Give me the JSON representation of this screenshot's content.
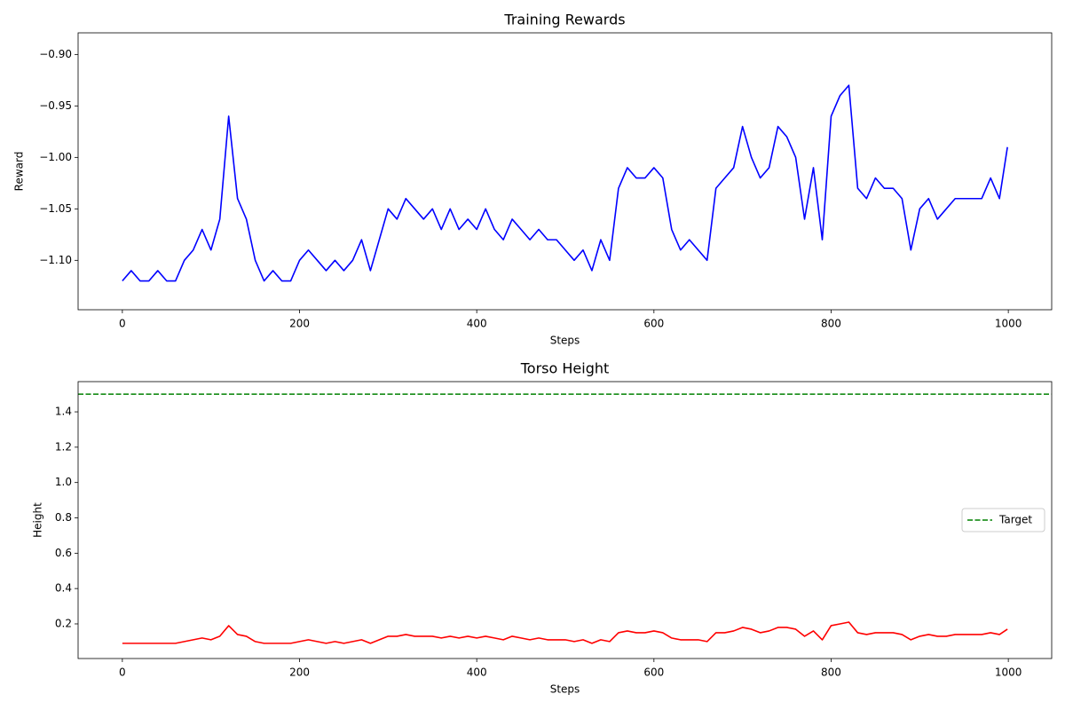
{
  "chart_data": [
    {
      "type": "line",
      "title": "Training Rewards",
      "xlabel": "Steps",
      "ylabel": "Reward",
      "x": [
        0,
        10,
        20,
        30,
        40,
        50,
        60,
        70,
        80,
        90,
        100,
        110,
        120,
        130,
        140,
        150,
        160,
        170,
        180,
        190,
        200,
        210,
        220,
        230,
        240,
        250,
        260,
        270,
        280,
        290,
        300,
        310,
        320,
        330,
        340,
        350,
        360,
        370,
        380,
        390,
        400,
        410,
        420,
        430,
        440,
        450,
        460,
        470,
        480,
        490,
        500,
        510,
        520,
        530,
        540,
        550,
        560,
        570,
        580,
        590,
        600,
        610,
        620,
        630,
        640,
        650,
        660,
        670,
        680,
        690,
        700,
        710,
        720,
        730,
        740,
        750,
        760,
        770,
        780,
        790,
        800,
        810,
        820,
        830,
        840,
        850,
        860,
        870,
        880,
        890,
        900,
        910,
        920,
        930,
        940,
        950,
        960,
        970,
        980,
        990,
        999
      ],
      "series": [
        {
          "color": "blue",
          "values": [
            -1.12,
            -1.11,
            -1.12,
            -1.12,
            -1.11,
            -1.12,
            -1.12,
            -1.1,
            -1.09,
            -1.07,
            -1.09,
            -1.06,
            -0.96,
            -1.04,
            -1.06,
            -1.1,
            -1.12,
            -1.11,
            -1.12,
            -1.12,
            -1.1,
            -1.09,
            -1.1,
            -1.11,
            -1.1,
            -1.11,
            -1.1,
            -1.08,
            -1.11,
            -1.08,
            -1.05,
            -1.06,
            -1.04,
            -1.05,
            -1.06,
            -1.05,
            -1.07,
            -1.05,
            -1.07,
            -1.06,
            -1.07,
            -1.05,
            -1.07,
            -1.08,
            -1.06,
            -1.07,
            -1.08,
            -1.07,
            -1.08,
            -1.08,
            -1.09,
            -1.1,
            -1.09,
            -1.11,
            -1.08,
            -1.1,
            -1.03,
            -1.01,
            -1.02,
            -1.02,
            -1.01,
            -1.02,
            -1.07,
            -1.09,
            -1.08,
            -1.09,
            -1.1,
            -1.03,
            -1.02,
            -1.01,
            -0.97,
            -1.0,
            -1.02,
            -1.01,
            -0.97,
            -0.98,
            -1.0,
            -1.06,
            -1.01,
            -1.08,
            -0.96,
            -0.94,
            -0.93,
            -1.03,
            -1.04,
            -1.02,
            -1.03,
            -1.03,
            -1.04,
            -1.09,
            -1.05,
            -1.04,
            -1.06,
            -1.05,
            -1.04,
            -1.04,
            -1.04,
            -1.04,
            -1.02,
            -1.04,
            -0.99
          ]
        }
      ],
      "xlim": [
        -49.95,
        1048.95
      ],
      "xticks": [
        0,
        200,
        400,
        600,
        800,
        1000
      ],
      "ylim": [
        -1.148,
        -0.879
      ],
      "yticks": [
        {
          "value": -1.1,
          "label": "−1.10"
        },
        {
          "value": -1.05,
          "label": "−1.05"
        },
        {
          "value": -1.0,
          "label": "−1.00"
        },
        {
          "value": -0.95,
          "label": "−0.95"
        },
        {
          "value": -0.9,
          "label": "−0.90"
        }
      ]
    },
    {
      "type": "line",
      "title": "Torso Height",
      "xlabel": "Steps",
      "ylabel": "Height",
      "x": [
        0,
        10,
        20,
        30,
        40,
        50,
        60,
        70,
        80,
        90,
        100,
        110,
        120,
        130,
        140,
        150,
        160,
        170,
        180,
        190,
        200,
        210,
        220,
        230,
        240,
        250,
        260,
        270,
        280,
        290,
        300,
        310,
        320,
        330,
        340,
        350,
        360,
        370,
        380,
        390,
        400,
        410,
        420,
        430,
        440,
        450,
        460,
        470,
        480,
        490,
        500,
        510,
        520,
        530,
        540,
        550,
        560,
        570,
        580,
        590,
        600,
        610,
        620,
        630,
        640,
        650,
        660,
        670,
        680,
        690,
        700,
        710,
        720,
        730,
        740,
        750,
        760,
        770,
        780,
        790,
        800,
        810,
        820,
        830,
        840,
        850,
        860,
        870,
        880,
        890,
        900,
        910,
        920,
        930,
        940,
        950,
        960,
        970,
        980,
        990,
        999
      ],
      "series": [
        {
          "color": "red",
          "values": [
            0.09,
            0.09,
            0.09,
            0.09,
            0.09,
            0.09,
            0.09,
            0.1,
            0.11,
            0.12,
            0.11,
            0.13,
            0.19,
            0.14,
            0.13,
            0.1,
            0.09,
            0.09,
            0.09,
            0.09,
            0.1,
            0.11,
            0.1,
            0.09,
            0.1,
            0.09,
            0.1,
            0.11,
            0.09,
            0.11,
            0.13,
            0.13,
            0.14,
            0.13,
            0.13,
            0.13,
            0.12,
            0.13,
            0.12,
            0.13,
            0.12,
            0.13,
            0.12,
            0.11,
            0.13,
            0.12,
            0.11,
            0.12,
            0.11,
            0.11,
            0.11,
            0.1,
            0.11,
            0.09,
            0.11,
            0.1,
            0.15,
            0.16,
            0.15,
            0.15,
            0.16,
            0.15,
            0.12,
            0.11,
            0.11,
            0.11,
            0.1,
            0.15,
            0.15,
            0.16,
            0.18,
            0.17,
            0.15,
            0.16,
            0.18,
            0.18,
            0.17,
            0.13,
            0.16,
            0.11,
            0.19,
            0.2,
            0.21,
            0.15,
            0.14,
            0.15,
            0.15,
            0.15,
            0.14,
            0.11,
            0.13,
            0.14,
            0.13,
            0.13,
            0.14,
            0.14,
            0.14,
            0.14,
            0.15,
            0.14,
            0.17
          ]
        }
      ],
      "hlines": [
        {
          "name": "Target",
          "value": 1.5,
          "color": "green",
          "style": "dashed"
        }
      ],
      "legend": "center right",
      "xlim": [
        -49.95,
        1048.95
      ],
      "xticks": [
        0,
        200,
        400,
        600,
        800,
        1000
      ],
      "ylim": [
        0.004,
        1.571
      ],
      "yticks": [
        0.2,
        0.4,
        0.6,
        0.8,
        {
          "value": 1.0,
          "label": "1.0"
        },
        1.2,
        1.4
      ]
    }
  ]
}
